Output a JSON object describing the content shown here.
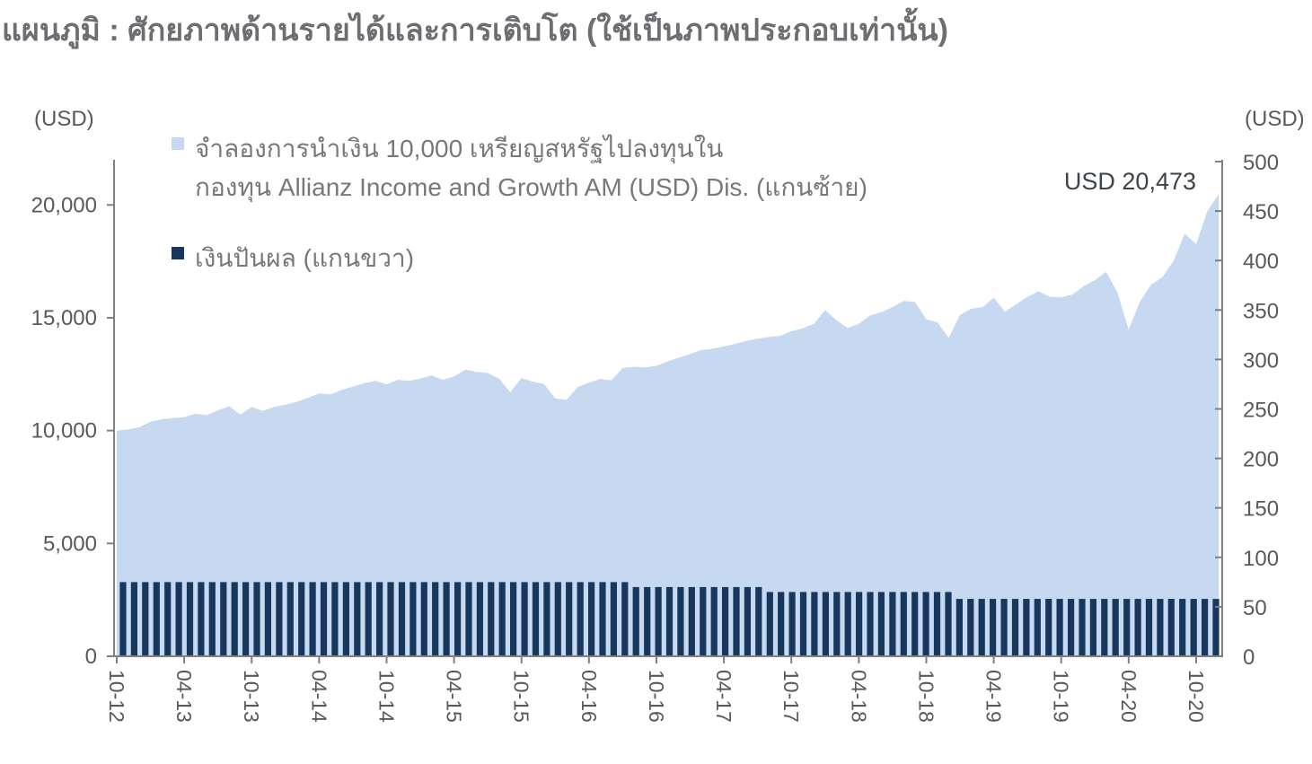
{
  "title": "แผนภูมิ : ศักยภาพด้านรายได้และการเติบโต (ใช้เป็นภาพประกอบเท่านั้น)",
  "legend": {
    "items": [
      {
        "lines": [
          "จำลองการนำเงิน 10,000 เหรียญสหรัฐไปลงทุนใน",
          "กองทุน Allianz Income and Growth AM (USD) Dis. (แกนซ้าย)"
        ],
        "color": "#c6d9f1"
      },
      {
        "lines": [
          "เงินปันผล (แกนขวา)"
        ],
        "color": "#17375d"
      }
    ]
  },
  "chart_data": {
    "type": "combo-area-bar",
    "title": "แผนภูมิ : ศักยภาพด้านรายได้และการเติบโต (ใช้เป็นภาพประกอบเท่านั้น)",
    "left_axis": {
      "unit_label": "(USD)",
      "ticks": [
        0,
        5000,
        10000,
        15000,
        20000
      ],
      "ylim": [
        0,
        22000
      ]
    },
    "right_axis": {
      "unit_label": "(USD)",
      "ticks": [
        0,
        50,
        100,
        150,
        200,
        250,
        300,
        350,
        400,
        450,
        500
      ],
      "ylim": [
        0,
        500
      ]
    },
    "x": {
      "tick_labels": [
        "10-12",
        "04-13",
        "10-13",
        "04-14",
        "10-14",
        "04-15",
        "10-15",
        "04-16",
        "10-16",
        "04-17",
        "10-17",
        "04-18",
        "10-18",
        "04-19",
        "10-19",
        "04-20",
        "10-20"
      ],
      "months_per_tick": 6,
      "start_month": "10-12",
      "end_month": "12-20"
    },
    "annotation": {
      "text": "USD 20,473",
      "value": 20473
    },
    "series": [
      {
        "name": "จำลองการนำเงิน 10,000 เหรียญสหรัฐไปลงทุนใน กองทุน Allianz Income and Growth AM (USD) Dis. (แกนซ้าย)",
        "type": "area",
        "axis": "left",
        "color": "#c6d9f1",
        "values": [
          10000,
          10050,
          10150,
          10400,
          10500,
          10550,
          10600,
          10750,
          10680,
          10900,
          11080,
          10700,
          11050,
          10870,
          11050,
          11150,
          11280,
          11450,
          11650,
          11600,
          11800,
          11950,
          12100,
          12200,
          12050,
          12250,
          12200,
          12300,
          12450,
          12250,
          12400,
          12700,
          12600,
          12550,
          12300,
          11700,
          12330,
          12170,
          12070,
          11430,
          11360,
          11930,
          12130,
          12290,
          12230,
          12770,
          12830,
          12800,
          12870,
          13070,
          13230,
          13400,
          13570,
          13630,
          13730,
          13840,
          13970,
          14070,
          14150,
          14200,
          14400,
          14530,
          14730,
          15350,
          14900,
          14550,
          14730,
          15100,
          15250,
          15470,
          15750,
          15700,
          14930,
          14800,
          14110,
          15130,
          15400,
          15470,
          15890,
          15270,
          15600,
          15930,
          16170,
          15930,
          15910,
          16030,
          16400,
          16670,
          17040,
          16130,
          14470,
          15730,
          16470,
          16800,
          17530,
          18730,
          18260,
          19730,
          20473
        ]
      },
      {
        "name": "เงินปันผล (แกนขวา)",
        "type": "bar",
        "axis": "right",
        "color": "#17375d",
        "values": [
          75,
          75,
          75,
          75,
          75,
          75,
          75,
          75,
          75,
          75,
          75,
          75,
          75,
          75,
          75,
          75,
          75,
          75,
          75,
          75,
          75,
          75,
          75,
          75,
          75,
          75,
          75,
          75,
          75,
          75,
          75,
          75,
          75,
          75,
          75,
          75,
          75,
          75,
          75,
          75,
          75,
          75,
          75,
          75,
          75,
          75,
          70,
          70,
          70,
          70,
          70,
          70,
          70,
          70,
          70,
          70,
          70,
          70,
          65,
          65,
          65,
          65,
          65,
          65,
          65,
          65,
          65,
          65,
          65,
          65,
          65,
          65,
          65,
          65,
          65,
          58,
          58,
          58,
          58,
          58,
          58,
          58,
          58,
          58,
          58,
          58,
          58,
          58,
          58,
          58,
          58,
          58,
          58,
          58,
          58,
          58,
          58,
          58,
          58
        ]
      }
    ],
    "colors": {
      "axis_line": "#808080",
      "tick_text": "#595959",
      "title_text": "#6d6e71",
      "annotation_text": "#3e4347"
    }
  }
}
